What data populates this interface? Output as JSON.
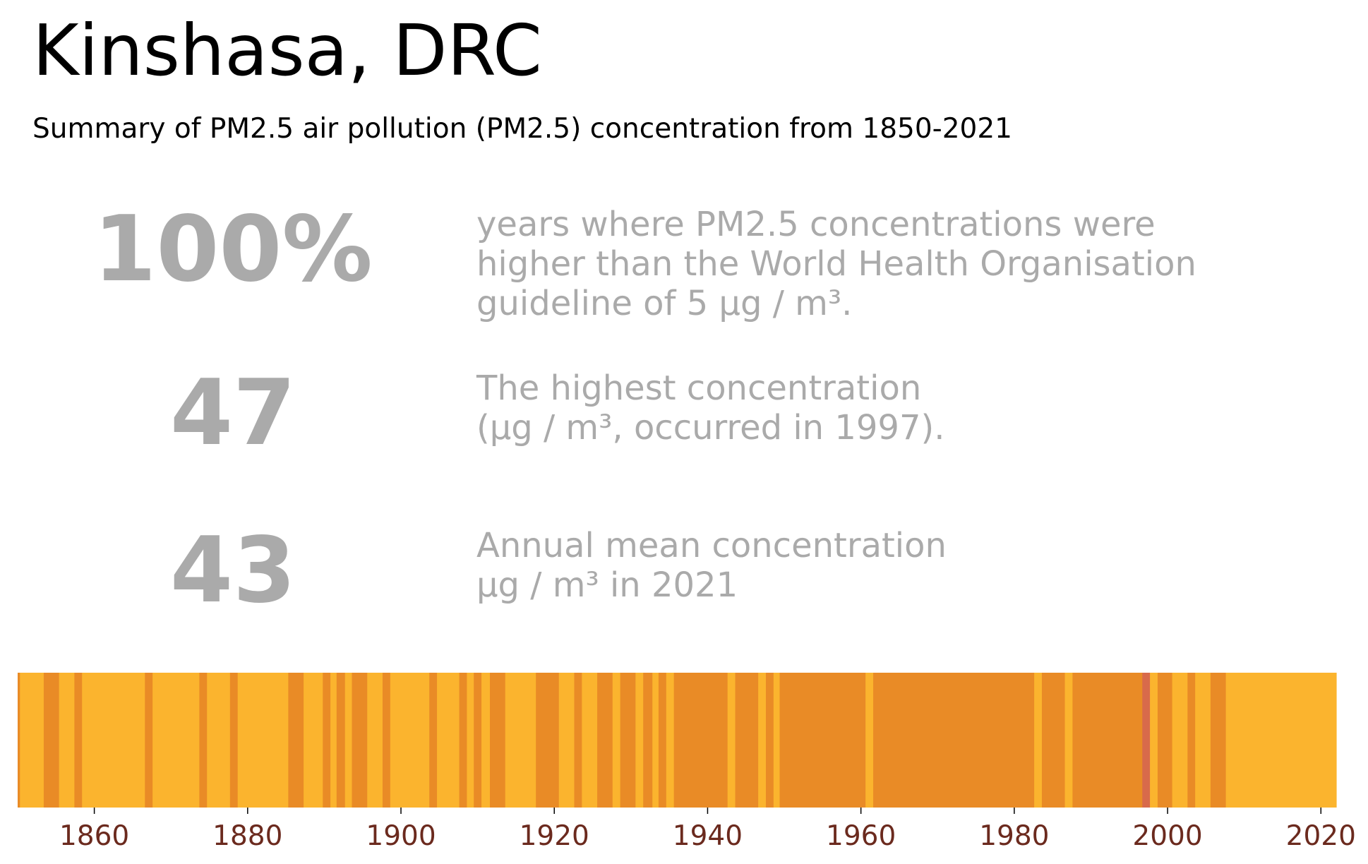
{
  "title": "Kinshasa, DRC",
  "subtitle": "Summary of PM2.5 air pollution (PM2.5) concentration from 1850-2021",
  "stats": [
    {
      "value": "100%",
      "lines": [
        "years where PM2.5 concentrations were",
        "higher than the World Health Organisation",
        "guideline of 5 µg / m³."
      ]
    },
    {
      "value": "47",
      "lines": [
        "The highest concentration",
        "(µg / m³, occurred in 1997)."
      ]
    },
    {
      "value": "43",
      "lines": [
        "Annual mean concentration",
        "µg / m³ in 2021"
      ]
    }
  ],
  "colors": {
    "text_gray": "#aaaaaa",
    "tick_label": "#6b2a1e",
    "level_low": "#fbb42e",
    "level_mid": "#e98b26",
    "level_high": "#d86a4b"
  },
  "chart_data": {
    "type": "heatmap",
    "description_kind": "warming-stripes style annual bands",
    "x_range": [
      1850,
      2022
    ],
    "xticks": [
      1860,
      1880,
      1900,
      1920,
      1940,
      1960,
      1980,
      2000,
      2020
    ],
    "legend": "none",
    "grid": false,
    "level_colors": {
      "1": "#fbb42e",
      "2": "#e98b26",
      "3": "#d86a4b"
    },
    "segments": [
      {
        "from": 1850,
        "to": 1850.3,
        "level": 2
      },
      {
        "from": 1850.3,
        "to": 1853.4,
        "level": 1
      },
      {
        "from": 1853.4,
        "to": 1855.4,
        "level": 2
      },
      {
        "from": 1855.4,
        "to": 1857.4,
        "level": 1
      },
      {
        "from": 1857.4,
        "to": 1858.4,
        "level": 2
      },
      {
        "from": 1858.4,
        "to": 1866.6,
        "level": 1
      },
      {
        "from": 1866.6,
        "to": 1867.6,
        "level": 2
      },
      {
        "from": 1867.6,
        "to": 1873.7,
        "level": 1
      },
      {
        "from": 1873.7,
        "to": 1874.7,
        "level": 2
      },
      {
        "from": 1874.7,
        "to": 1877.7,
        "level": 1
      },
      {
        "from": 1877.7,
        "to": 1878.7,
        "level": 2
      },
      {
        "from": 1878.7,
        "to": 1885.3,
        "level": 1
      },
      {
        "from": 1885.3,
        "to": 1887.3,
        "level": 2
      },
      {
        "from": 1887.3,
        "to": 1889.8,
        "level": 1
      },
      {
        "from": 1889.8,
        "to": 1890.8,
        "level": 2
      },
      {
        "from": 1890.8,
        "to": 1891.6,
        "level": 1
      },
      {
        "from": 1891.6,
        "to": 1892.7,
        "level": 2
      },
      {
        "from": 1892.7,
        "to": 1893.6,
        "level": 1
      },
      {
        "from": 1893.6,
        "to": 1895.6,
        "level": 2
      },
      {
        "from": 1895.6,
        "to": 1897.6,
        "level": 1
      },
      {
        "from": 1897.6,
        "to": 1898.6,
        "level": 2
      },
      {
        "from": 1898.6,
        "to": 1903.7,
        "level": 1
      },
      {
        "from": 1903.7,
        "to": 1904.7,
        "level": 2
      },
      {
        "from": 1904.7,
        "to": 1907.6,
        "level": 1
      },
      {
        "from": 1907.6,
        "to": 1908.6,
        "level": 2
      },
      {
        "from": 1908.6,
        "to": 1909.5,
        "level": 1
      },
      {
        "from": 1909.5,
        "to": 1910.5,
        "level": 2
      },
      {
        "from": 1910.5,
        "to": 1911.6,
        "level": 1
      },
      {
        "from": 1911.6,
        "to": 1913.6,
        "level": 2
      },
      {
        "from": 1913.6,
        "to": 1917.6,
        "level": 1
      },
      {
        "from": 1917.6,
        "to": 1920.6,
        "level": 2
      },
      {
        "from": 1920.6,
        "to": 1922.6,
        "level": 1
      },
      {
        "from": 1922.6,
        "to": 1923.6,
        "level": 2
      },
      {
        "from": 1923.6,
        "to": 1925.6,
        "level": 1
      },
      {
        "from": 1925.6,
        "to": 1927.6,
        "level": 2
      },
      {
        "from": 1927.6,
        "to": 1928.6,
        "level": 1
      },
      {
        "from": 1928.6,
        "to": 1930.6,
        "level": 2
      },
      {
        "from": 1930.6,
        "to": 1931.6,
        "level": 1
      },
      {
        "from": 1931.6,
        "to": 1932.8,
        "level": 2
      },
      {
        "from": 1932.8,
        "to": 1933.6,
        "level": 1
      },
      {
        "from": 1933.6,
        "to": 1934.6,
        "level": 2
      },
      {
        "from": 1934.6,
        "to": 1935.6,
        "level": 1
      },
      {
        "from": 1935.6,
        "to": 1942.6,
        "level": 2
      },
      {
        "from": 1942.6,
        "to": 1943.6,
        "level": 1
      },
      {
        "from": 1943.6,
        "to": 1946.6,
        "level": 2
      },
      {
        "from": 1946.6,
        "to": 1947.6,
        "level": 1
      },
      {
        "from": 1947.6,
        "to": 1948.6,
        "level": 2
      },
      {
        "from": 1948.6,
        "to": 1949.4,
        "level": 1
      },
      {
        "from": 1949.4,
        "to": 1960.6,
        "level": 2
      },
      {
        "from": 1960.6,
        "to": 1961.6,
        "level": 1
      },
      {
        "from": 1961.6,
        "to": 1982.6,
        "level": 2
      },
      {
        "from": 1982.6,
        "to": 1983.6,
        "level": 1
      },
      {
        "from": 1983.6,
        "to": 1986.6,
        "level": 2
      },
      {
        "from": 1986.6,
        "to": 1987.6,
        "level": 1
      },
      {
        "from": 1987.6,
        "to": 1996.7,
        "level": 2
      },
      {
        "from": 1996.7,
        "to": 1997.7,
        "level": 3
      },
      {
        "from": 1997.7,
        "to": 1998.7,
        "level": 1
      },
      {
        "from": 1998.7,
        "to": 2000.6,
        "level": 2
      },
      {
        "from": 2000.6,
        "to": 2002.6,
        "level": 1
      },
      {
        "from": 2002.6,
        "to": 2003.6,
        "level": 2
      },
      {
        "from": 2003.6,
        "to": 2005.6,
        "level": 1
      },
      {
        "from": 2005.6,
        "to": 2007.6,
        "level": 2
      },
      {
        "from": 2007.6,
        "to": 2022,
        "level": 1
      }
    ]
  }
}
